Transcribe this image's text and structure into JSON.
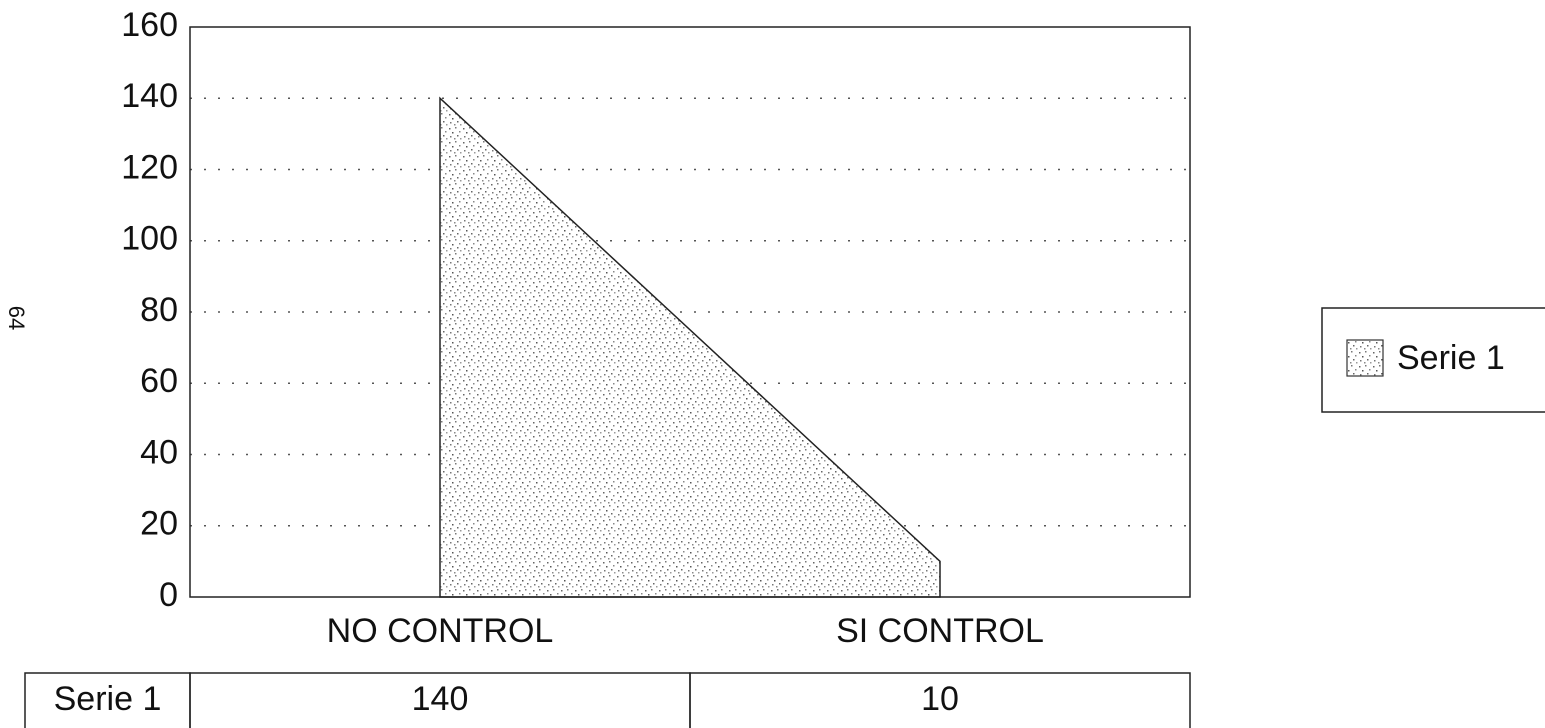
{
  "page_number": "64",
  "chart_data": {
    "type": "area",
    "categories": [
      "NO CONTROL",
      "SI CONTROL"
    ],
    "series": [
      {
        "name": "Serie 1",
        "color": "#9a9a9a",
        "values": [
          140,
          10
        ]
      }
    ],
    "ylim": [
      0,
      160
    ],
    "yticks": [
      0,
      20,
      40,
      60,
      80,
      100,
      120,
      140,
      160
    ],
    "grid": true,
    "legend": "right",
    "data_table": true
  }
}
